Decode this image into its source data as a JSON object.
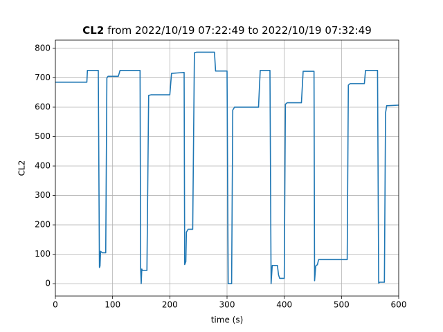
{
  "chart_data": {
    "type": "line",
    "title": {
      "bold": "CL2",
      "text": "from 2022/10/19 07:22:49 to 2022/10/19 07:32:49"
    },
    "xlabel": "time (s)",
    "ylabel": "CL2",
    "x": [
      0,
      55,
      56,
      75,
      77,
      78,
      79,
      82,
      88,
      90,
      92,
      110,
      113,
      148,
      149,
      150,
      151,
      152,
      160,
      163,
      167,
      200,
      203,
      225,
      226,
      228,
      229,
      232,
      240,
      243,
      247,
      278,
      280,
      300,
      302,
      308,
      310,
      313,
      355,
      358,
      375,
      377,
      379,
      388,
      390,
      392,
      400,
      402,
      405,
      430,
      433,
      452,
      453,
      455,
      458,
      460,
      510,
      512,
      515,
      540,
      542,
      563,
      565,
      567,
      575,
      577,
      579,
      600
    ],
    "series": [
      {
        "name": "CL2",
        "color": "#1f77b4",
        "values": [
          685,
          685,
          725,
          725,
          55,
          60,
          110,
          105,
          105,
          700,
          705,
          705,
          725,
          725,
          50,
          0,
          50,
          45,
          45,
          640,
          642,
          642,
          715,
          718,
          65,
          75,
          175,
          185,
          185,
          785,
          787,
          787,
          723,
          723,
          0,
          0,
          590,
          600,
          600,
          725,
          725,
          0,
          62,
          62,
          30,
          18,
          18,
          610,
          615,
          615,
          722,
          722,
          10,
          60,
          65,
          82,
          82,
          675,
          680,
          680,
          725,
          725,
          2,
          5,
          5,
          580,
          605,
          607
        ]
      }
    ],
    "xlim": [
      0,
      600
    ],
    "ylim": [
      -42,
      828
    ],
    "xticks": [
      0,
      100,
      200,
      300,
      400,
      500,
      600
    ],
    "yticks": [
      0,
      100,
      200,
      300,
      400,
      500,
      600,
      700,
      800
    ],
    "grid": true
  }
}
